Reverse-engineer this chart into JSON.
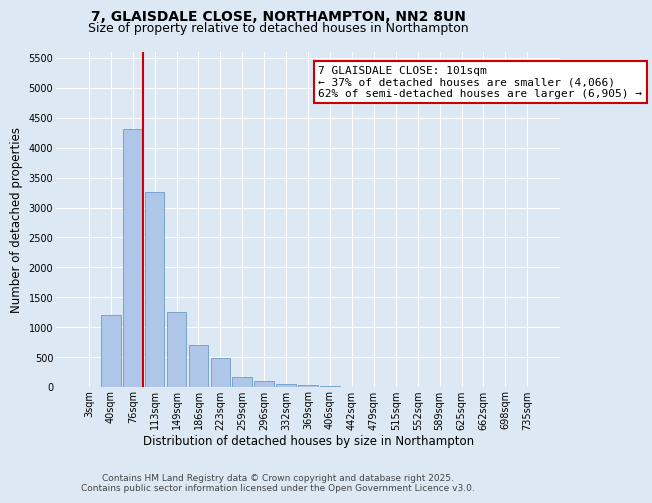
{
  "title": "7, GLAISDALE CLOSE, NORTHAMPTON, NN2 8UN",
  "subtitle": "Size of property relative to detached houses in Northampton",
  "xlabel": "Distribution of detached houses by size in Northampton",
  "ylabel": "Number of detached properties",
  "categories": [
    "3sqm",
    "40sqm",
    "76sqm",
    "113sqm",
    "149sqm",
    "186sqm",
    "223sqm",
    "259sqm",
    "296sqm",
    "332sqm",
    "369sqm",
    "406sqm",
    "442sqm",
    "479sqm",
    "515sqm",
    "552sqm",
    "589sqm",
    "625sqm",
    "662sqm",
    "698sqm",
    "735sqm"
  ],
  "values": [
    0,
    1210,
    4310,
    3260,
    1250,
    700,
    480,
    175,
    100,
    55,
    30,
    10,
    5,
    0,
    0,
    0,
    0,
    0,
    0,
    0,
    0
  ],
  "bar_color": "#aec6e8",
  "bar_edge_color": "#5a8fc0",
  "vline_x": 2.45,
  "vline_color": "#cc0000",
  "annotation_box_text": "7 GLAISDALE CLOSE: 101sqm\n← 37% of detached houses are smaller (4,066)\n62% of semi-detached houses are larger (6,905) →",
  "ylim": [
    0,
    5600
  ],
  "yticks": [
    0,
    500,
    1000,
    1500,
    2000,
    2500,
    3000,
    3500,
    4000,
    4500,
    5000,
    5500
  ],
  "background_color": "#dce9f5",
  "footer_line1": "Contains HM Land Registry data © Crown copyright and database right 2025.",
  "footer_line2": "Contains public sector information licensed under the Open Government Licence v3.0.",
  "title_fontsize": 10,
  "subtitle_fontsize": 9,
  "axis_label_fontsize": 8.5,
  "tick_fontsize": 7,
  "annotation_fontsize": 8,
  "footer_fontsize": 6.5
}
